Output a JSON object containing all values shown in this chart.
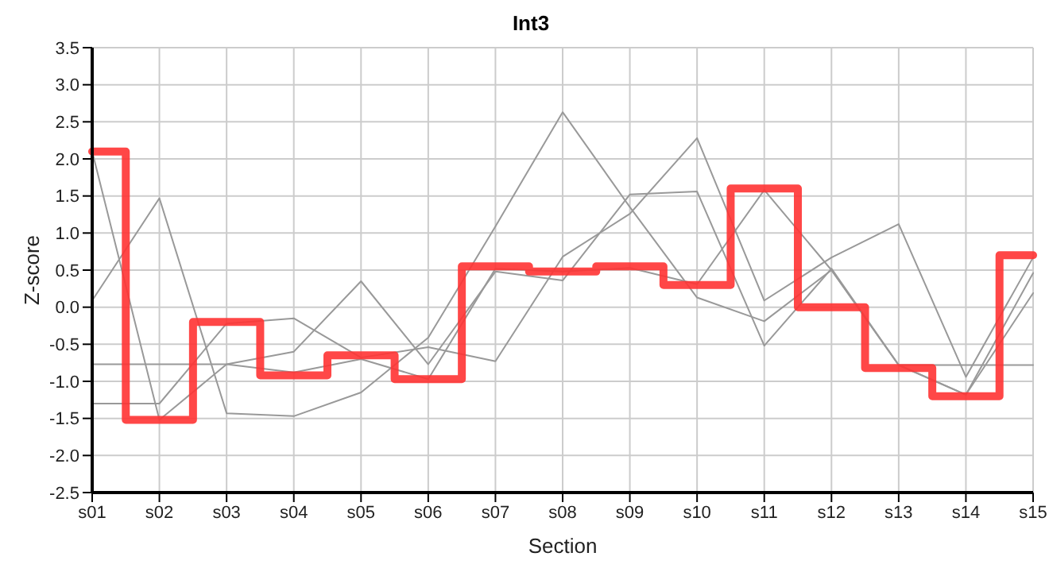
{
  "chart_data": {
    "type": "line",
    "title": "Int3",
    "xlabel": "Section",
    "ylabel": "Z-score",
    "categories": [
      "s01",
      "s02",
      "s03",
      "s04",
      "s05",
      "s06",
      "s07",
      "s08",
      "s09",
      "s10",
      "s11",
      "s12",
      "s13",
      "s14",
      "s15"
    ],
    "series": [
      {
        "color": "#999999",
        "values": [
          2.1,
          -1.52,
          -0.77,
          -0.88,
          -0.7,
          -0.97,
          0.52,
          0.48,
          0.53,
          0.31,
          1.58,
          0.5,
          -0.78,
          -1.18,
          0.46
        ]
      },
      {
        "color": "#999999",
        "values": [
          0.09,
          1.47,
          -1.43,
          -1.47,
          -1.15,
          -0.41,
          1.09,
          2.63,
          1.35,
          0.13,
          -0.19,
          0.5,
          -0.78,
          -1.18,
          0.19
        ]
      },
      {
        "color": "#999999",
        "values": [
          -0.77,
          -0.77,
          -0.77,
          -0.6,
          0.35,
          -0.77,
          0.48,
          0.36,
          1.52,
          1.56,
          -0.52,
          0.52,
          -0.78,
          -0.78,
          -0.78
        ]
      },
      {
        "color": "#999999",
        "values": [
          -1.3,
          -1.3,
          -0.22,
          -0.15,
          -0.68,
          -0.54,
          -0.73,
          0.68,
          1.26,
          2.28,
          0.09,
          0.67,
          1.12,
          -0.94,
          0.67
        ]
      },
      {
        "type": "step",
        "color": "#ff3333",
        "values": [
          2.1,
          -1.52,
          -0.2,
          -0.92,
          -0.65,
          -0.97,
          0.55,
          0.48,
          0.55,
          0.3,
          1.6,
          0.0,
          -0.82,
          -1.2,
          0.7
        ]
      }
    ],
    "ylim": [
      -2.5,
      3.5
    ],
    "yticks": [
      -2.5,
      {
        "value": -2,
        "label": "-2.0"
      },
      -1.5,
      {
        "value": -1,
        "label": "-1.0"
      },
      -0.5,
      {
        "value": 0,
        "label": "0.0"
      },
      0.5,
      {
        "value": 1,
        "label": "1.0"
      },
      1.5,
      {
        "value": 2,
        "label": "2.0"
      },
      2.5,
      {
        "value": 3,
        "label": "3.0"
      },
      3.5
    ],
    "grid": true,
    "marker": "none"
  }
}
